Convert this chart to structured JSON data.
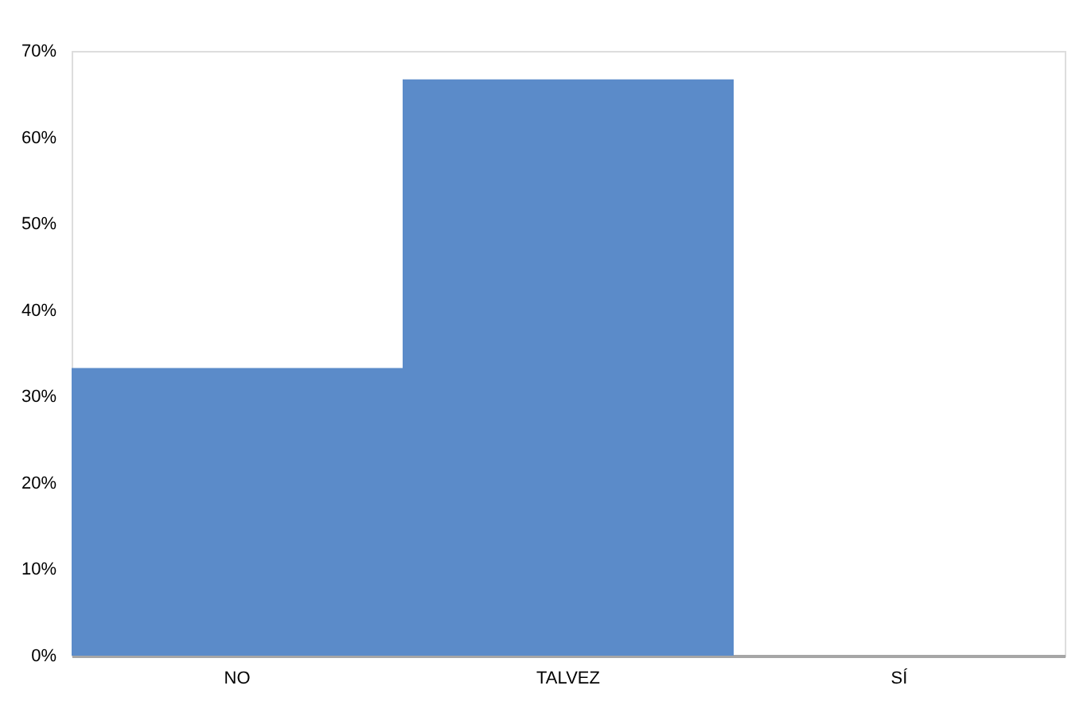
{
  "chart_data": {
    "type": "bar",
    "categories": [
      "NO",
      "TALVEZ",
      "SÍ"
    ],
    "values": [
      33.3,
      66.7,
      0
    ],
    "color": "#5b8bc9",
    "ylim": [
      0,
      70
    ],
    "yticks": [
      {
        "value": 0,
        "label": "0%"
      },
      {
        "value": 10,
        "label": "10%"
      },
      {
        "value": 20,
        "label": "20%"
      },
      {
        "value": 30,
        "label": "30%"
      },
      {
        "value": 40,
        "label": "40%"
      },
      {
        "value": 50,
        "label": "50%"
      },
      {
        "value": 60,
        "label": "60%"
      },
      {
        "value": 70,
        "label": "70%"
      }
    ],
    "grid": false
  }
}
